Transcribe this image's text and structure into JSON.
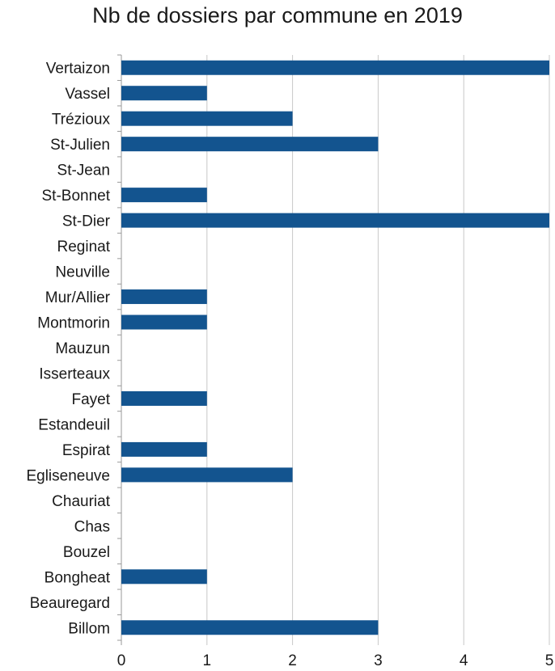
{
  "chart_data": {
    "type": "bar",
    "orientation": "horizontal",
    "title": "Nb de dossiers par commune en 2019",
    "xlabel": "",
    "ylabel": "",
    "categories": [
      "Vertaizon",
      "Vassel",
      "Trézioux",
      "St-Julien",
      "St-Jean",
      "St-Bonnet",
      "St-Dier",
      "Reginat",
      "Neuville",
      "Mur/Allier",
      "Montmorin",
      "Mauzun",
      "Isserteaux",
      "Fayet",
      "Estandeuil",
      "Espirat",
      "Egliseneuve",
      "Chauriat",
      "Chas",
      "Bouzel",
      "Bongheat",
      "Beauregard",
      "Billom"
    ],
    "values": [
      5,
      1,
      2,
      3,
      0,
      1,
      5,
      0,
      0,
      1,
      1,
      0,
      0,
      1,
      0,
      1,
      2,
      0,
      0,
      0,
      1,
      0,
      3
    ],
    "xlim": [
      0,
      5
    ],
    "xticks": [
      "0",
      "1",
      "2",
      "3",
      "4",
      "5"
    ],
    "grid": "vertical",
    "legend": "none",
    "bar_color": "#13548F"
  }
}
